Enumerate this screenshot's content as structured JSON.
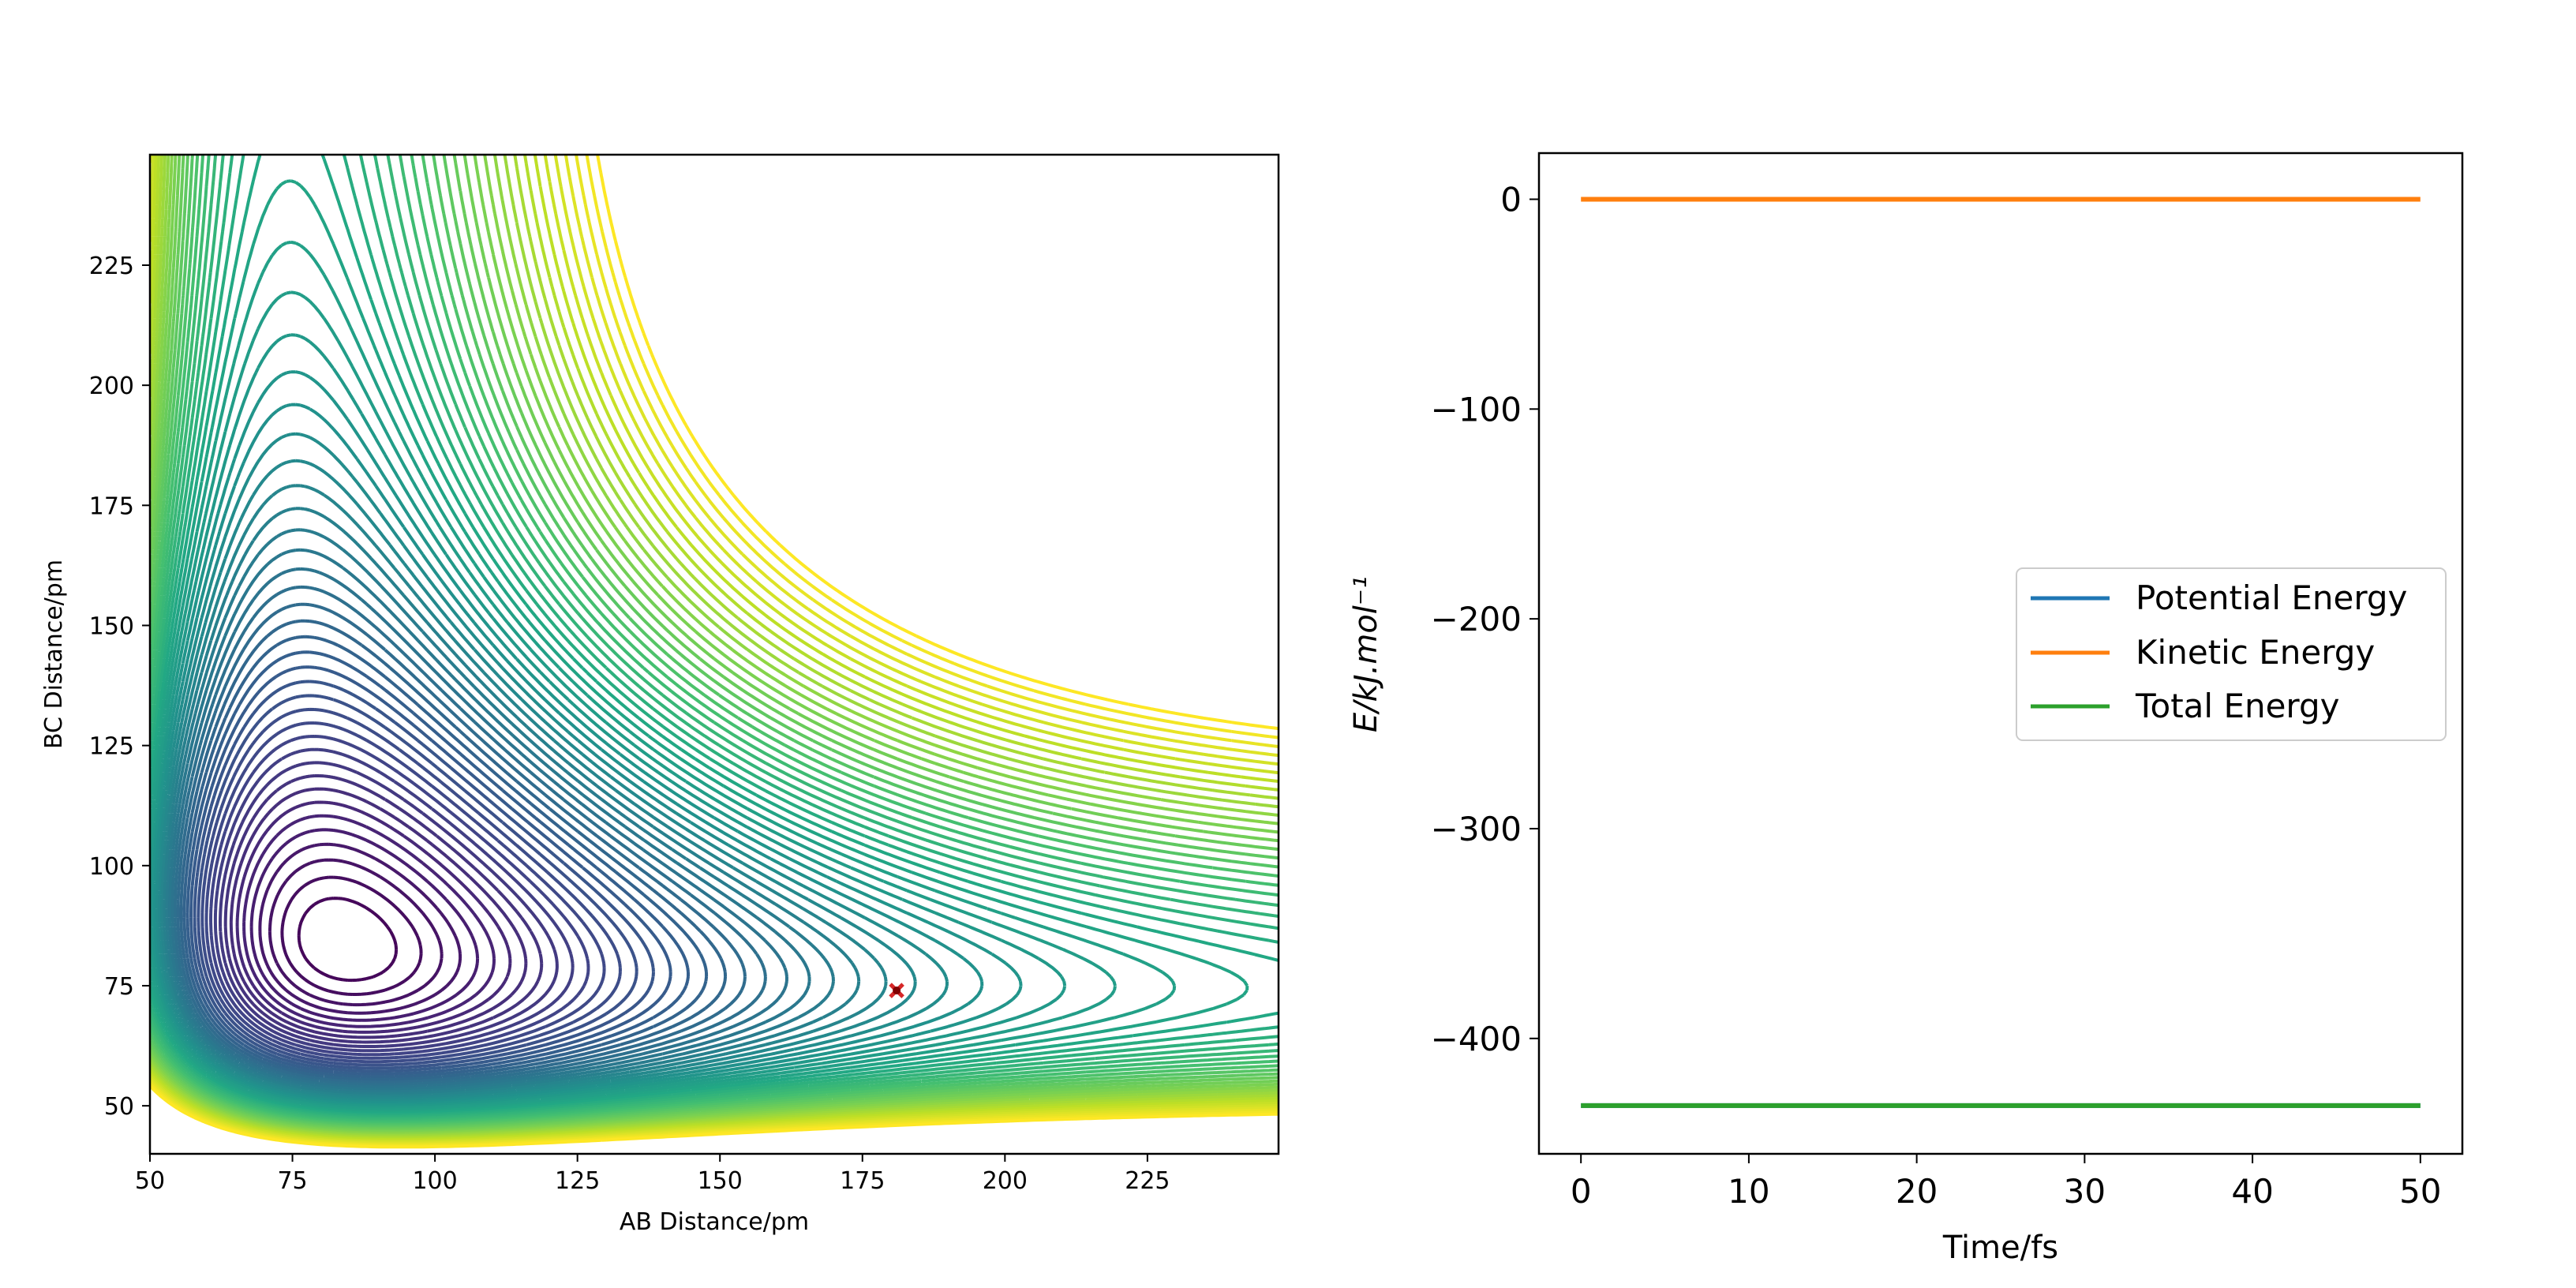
{
  "chart_data": [
    {
      "type": "contour",
      "xlabel": "AB Distance/pm",
      "ylabel": "BC Distance/pm",
      "xlim": [
        50,
        248
      ],
      "ylim": [
        40,
        248
      ],
      "x_ticks": [
        50,
        75,
        100,
        125,
        150,
        175,
        200,
        225
      ],
      "y_ticks": [
        50,
        75,
        100,
        125,
        150,
        175,
        200,
        225
      ],
      "colormap": "viridis",
      "marker": {
        "x": 181,
        "y": 74,
        "color": "#d62728",
        "shape": "x"
      },
      "grid": false
    },
    {
      "type": "line",
      "xlabel": "Time/fs",
      "ylabel": "E/kJ.mol⁻¹",
      "xlim": [
        -2.5,
        52.5
      ],
      "ylim": [
        -455,
        22
      ],
      "x_ticks": [
        0,
        10,
        20,
        30,
        40,
        50
      ],
      "y_ticks": [
        0,
        -100,
        -200,
        -300,
        -400
      ],
      "x_tick_labels": [
        "0",
        "10",
        "20",
        "30",
        "40",
        "50"
      ],
      "y_tick_labels": [
        "0",
        "−100",
        "−200",
        "−300",
        "−400"
      ],
      "legend_position": "center-right",
      "grid": false,
      "series": [
        {
          "name": "Potential Energy",
          "color": "#1f77b4",
          "x": [
            0,
            50
          ],
          "y": [
            -432,
            -432
          ]
        },
        {
          "name": "Kinetic Energy",
          "color": "#ff7f0e",
          "x": [
            0,
            50
          ],
          "y": [
            0,
            0
          ]
        },
        {
          "name": "Total Energy",
          "color": "#2ca02c",
          "x": [
            0,
            50
          ],
          "y": [
            -432,
            -432
          ]
        }
      ]
    }
  ]
}
